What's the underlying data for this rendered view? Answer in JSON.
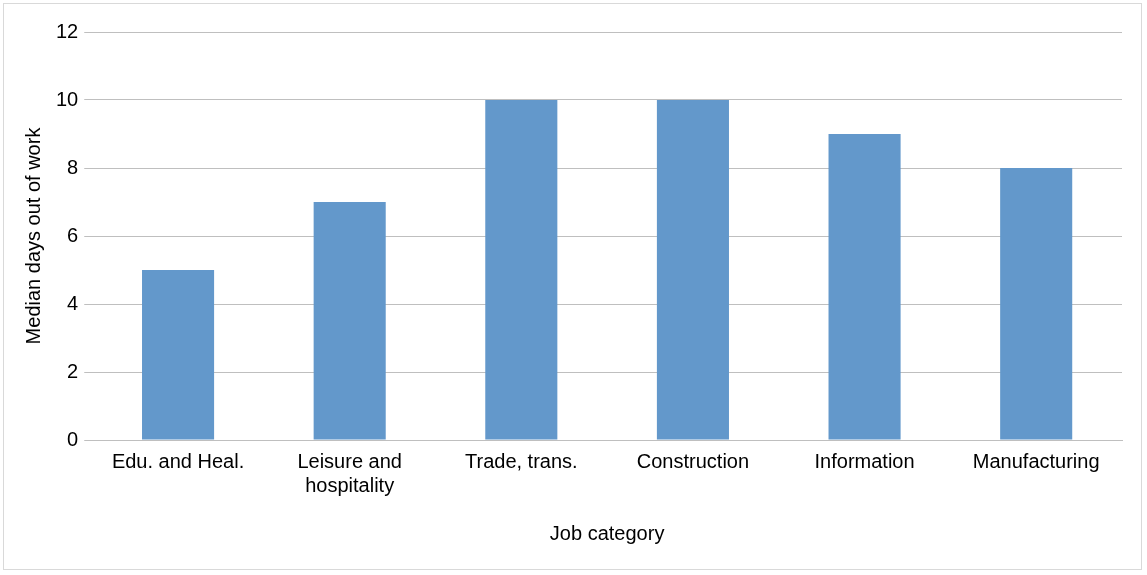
{
  "chart_data": {
    "type": "bar",
    "xlabel": "Job category",
    "ylabel": "Median days out of work",
    "categories": [
      "Edu. and Heal.",
      "Leisure and hospitality",
      "Trade, trans.",
      "Construction",
      "Information",
      "Manufacturing"
    ],
    "series": [
      {
        "color": "#6398cb",
        "values": [
          5,
          7,
          10,
          10,
          9,
          8
        ]
      }
    ],
    "ylim": [
      0,
      12
    ],
    "yticks": [
      0,
      2,
      4,
      6,
      8,
      10,
      12
    ],
    "grid": "y",
    "legend": false
  }
}
